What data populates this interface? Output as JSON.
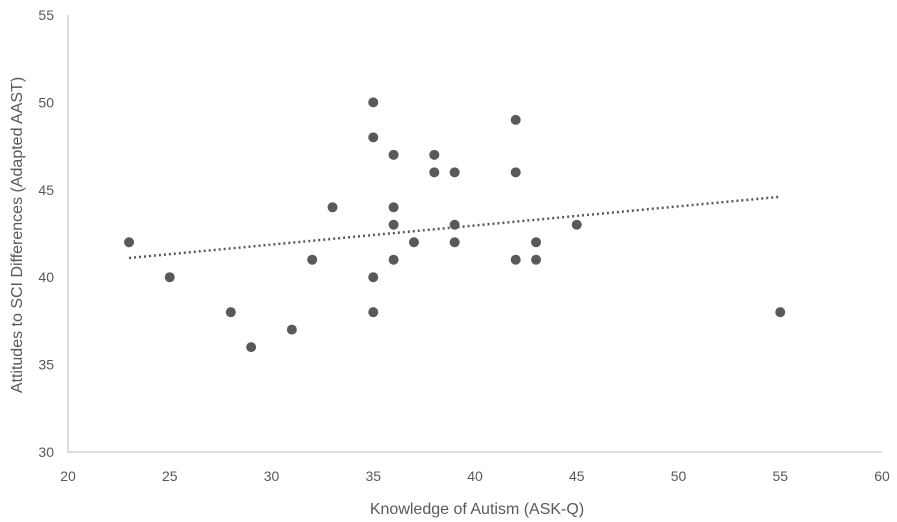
{
  "chart_data": {
    "type": "scatter",
    "title": "",
    "xlabel": "Knowledge of Autism (ASK-Q)",
    "ylabel": "Attitudes to SCI Differences (Adapted AAST)",
    "xlim": [
      20,
      60
    ],
    "ylim": [
      30,
      55
    ],
    "x_ticks": [
      "20",
      "25",
      "30",
      "35",
      "40",
      "45",
      "50",
      "55",
      "60"
    ],
    "y_ticks": [
      "30",
      "35",
      "40",
      "45",
      "50",
      "55"
    ],
    "grid": false,
    "legend": "none",
    "marker_color": "#595959",
    "points": [
      {
        "x": 23,
        "y": 42
      },
      {
        "x": 25,
        "y": 40
      },
      {
        "x": 28,
        "y": 38
      },
      {
        "x": 29,
        "y": 36
      },
      {
        "x": 31,
        "y": 37
      },
      {
        "x": 32,
        "y": 41
      },
      {
        "x": 33,
        "y": 44
      },
      {
        "x": 35,
        "y": 50
      },
      {
        "x": 35,
        "y": 48
      },
      {
        "x": 35,
        "y": 40
      },
      {
        "x": 35,
        "y": 38
      },
      {
        "x": 36,
        "y": 47
      },
      {
        "x": 36,
        "y": 44
      },
      {
        "x": 36,
        "y": 43
      },
      {
        "x": 36,
        "y": 41
      },
      {
        "x": 37,
        "y": 42
      },
      {
        "x": 38,
        "y": 47
      },
      {
        "x": 38,
        "y": 46
      },
      {
        "x": 39,
        "y": 46
      },
      {
        "x": 39,
        "y": 43
      },
      {
        "x": 39,
        "y": 42
      },
      {
        "x": 42,
        "y": 49
      },
      {
        "x": 42,
        "y": 46
      },
      {
        "x": 42,
        "y": 41
      },
      {
        "x": 43,
        "y": 42
      },
      {
        "x": 43,
        "y": 41
      },
      {
        "x": 45,
        "y": 43
      },
      {
        "x": 55,
        "y": 38
      }
    ],
    "trendline": {
      "type": "linear",
      "style": "dotted",
      "start": {
        "x": 23,
        "y": 41.1
      },
      "end": {
        "x": 55,
        "y": 44.6
      }
    }
  }
}
